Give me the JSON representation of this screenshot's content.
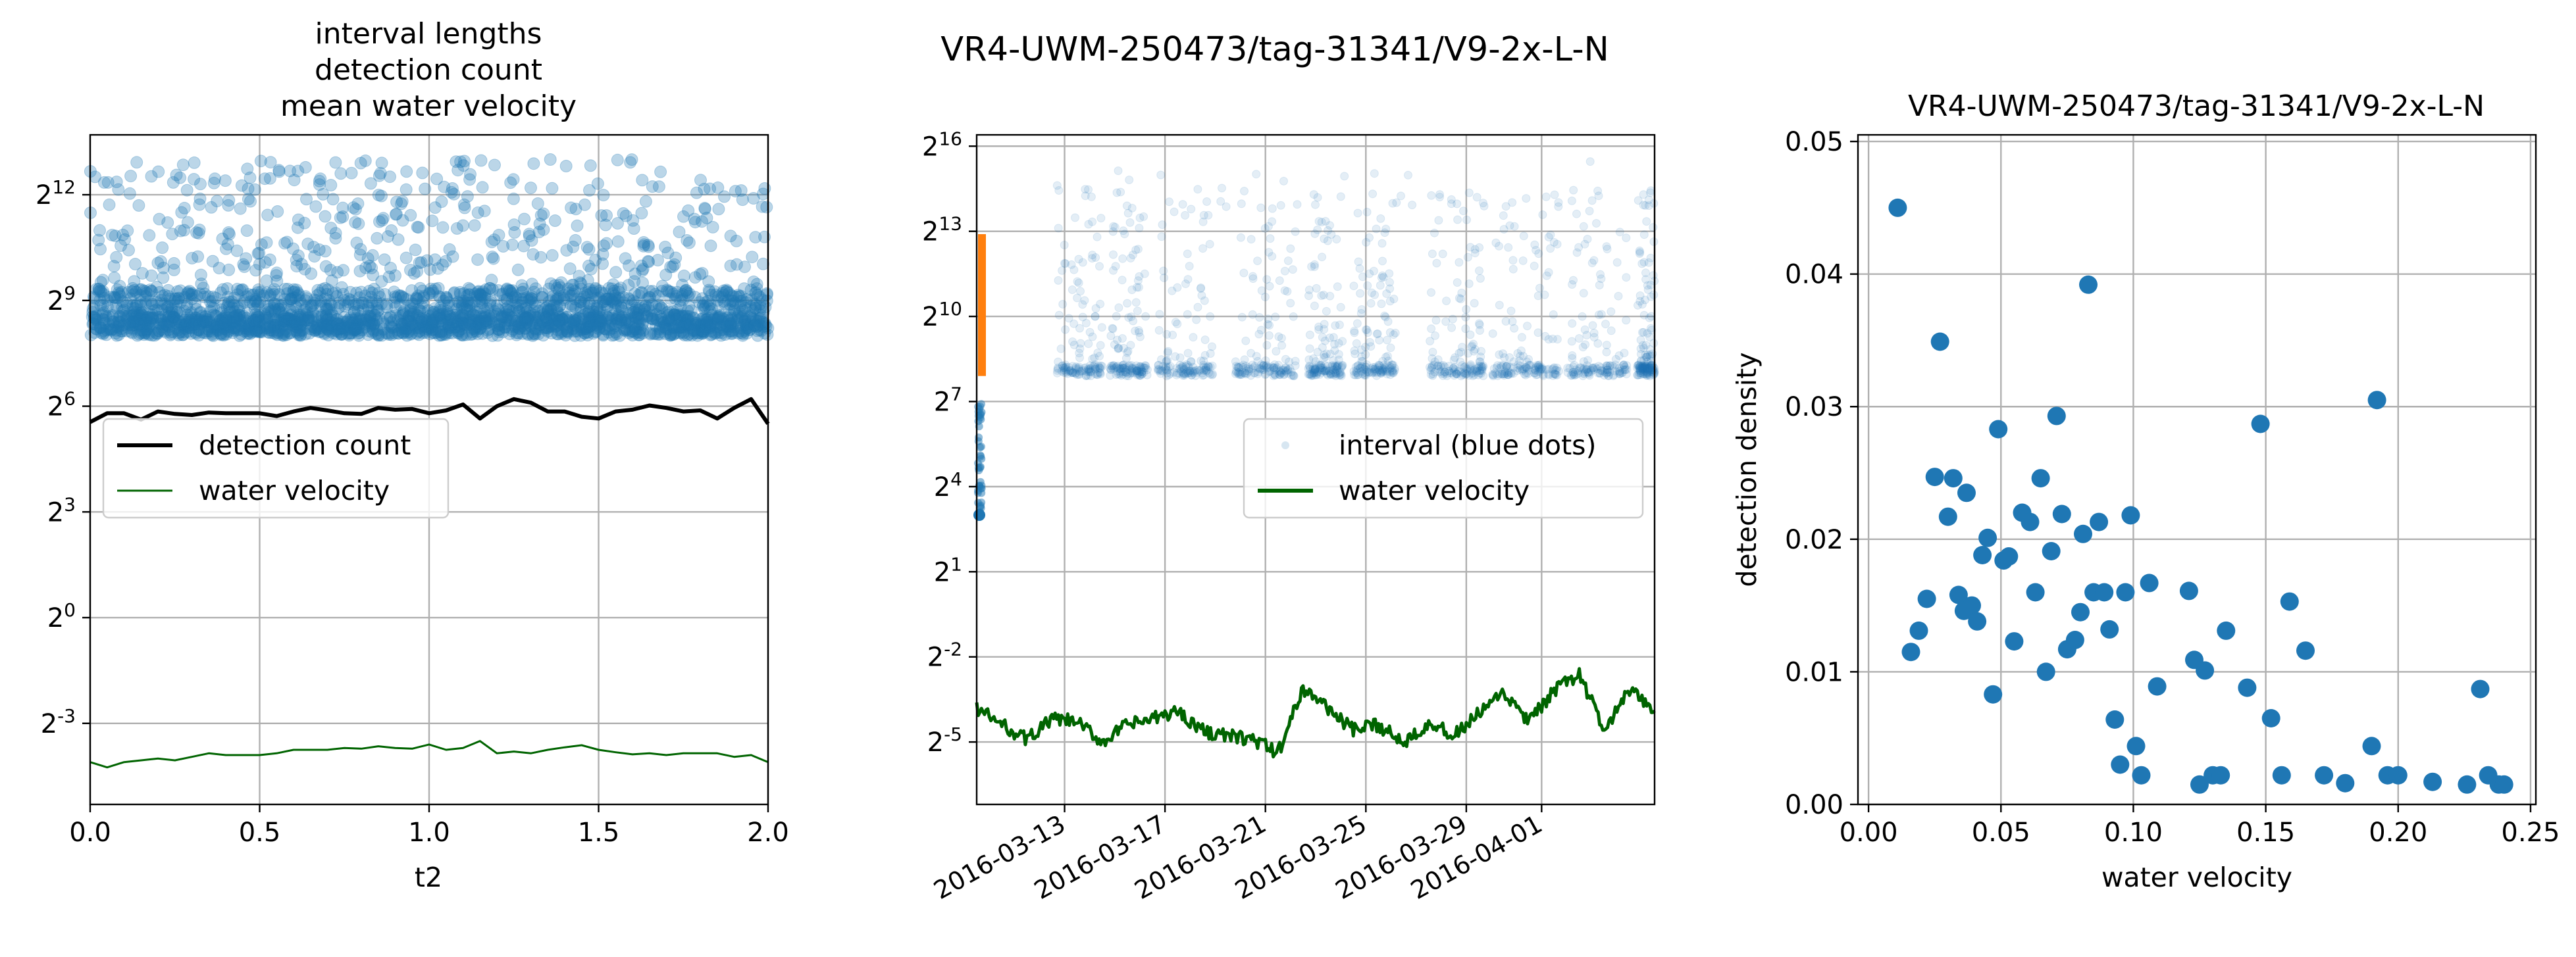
{
  "figure": {
    "suptitle": "VR4-UWM-250473/tag-31341/V9-2x-L-N"
  },
  "colors": {
    "blue": "#1f77b4",
    "orange": "#ff7f0e",
    "black": "#000000",
    "dark_green": "#006400",
    "grid": "#b0b0b0"
  },
  "chart_data": [
    {
      "type": "scatter",
      "title_lines": [
        "interval lengths",
        "detection count",
        "mean water velocity"
      ],
      "xlabel": "t2",
      "ylabel": "",
      "xlim": [
        0.0,
        2.0
      ],
      "y_scale": "log2",
      "ylim_log2": [
        -5.3,
        13.7
      ],
      "x_ticks": [
        "0.0",
        "0.5",
        "1.0",
        "1.5",
        "2.0"
      ],
      "y_tick_exponents": [
        -3,
        0,
        3,
        6,
        9,
        12
      ],
      "grid": true,
      "legend_position": "center-left",
      "legend": [
        "detection count",
        "water velocity"
      ],
      "scatter_summary": {
        "series": "interval lengths",
        "color": "#1f77b4",
        "alpha": 0.3,
        "dense_band_log2": [
          8.0,
          8.6
        ],
        "spread_log2": [
          8.6,
          13.0
        ]
      },
      "series": [
        {
          "name": "detection count",
          "color": "#000000",
          "x": [
            0.0,
            0.05,
            0.1,
            0.15,
            0.2,
            0.25,
            0.3,
            0.35,
            0.4,
            0.45,
            0.5,
            0.55,
            0.6,
            0.65,
            0.7,
            0.75,
            0.8,
            0.85,
            0.9,
            0.95,
            1.0,
            1.05,
            1.1,
            1.15,
            1.2,
            1.25,
            1.3,
            1.35,
            1.4,
            1.45,
            1.5,
            1.55,
            1.6,
            1.65,
            1.7,
            1.75,
            1.8,
            1.85,
            1.9,
            1.95,
            2.0
          ],
          "y_log2": [
            5.55,
            5.8,
            5.8,
            5.62,
            5.85,
            5.78,
            5.75,
            5.82,
            5.8,
            5.8,
            5.8,
            5.72,
            5.85,
            5.95,
            5.88,
            5.8,
            5.78,
            5.95,
            5.9,
            5.92,
            5.8,
            5.88,
            6.05,
            5.65,
            6.0,
            6.2,
            6.1,
            5.85,
            5.85,
            5.7,
            5.65,
            5.85,
            5.9,
            6.02,
            5.95,
            5.85,
            5.88,
            5.65,
            5.95,
            6.2,
            5.5
          ]
        },
        {
          "name": "water velocity",
          "color": "#006400",
          "x": [
            0.0,
            0.05,
            0.1,
            0.15,
            0.2,
            0.25,
            0.3,
            0.35,
            0.4,
            0.45,
            0.5,
            0.55,
            0.6,
            0.65,
            0.7,
            0.75,
            0.8,
            0.85,
            0.9,
            0.95,
            1.0,
            1.05,
            1.1,
            1.15,
            1.2,
            1.25,
            1.3,
            1.35,
            1.4,
            1.45,
            1.5,
            1.55,
            1.6,
            1.65,
            1.7,
            1.75,
            1.8,
            1.85,
            1.9,
            1.95,
            2.0
          ],
          "y_log2": [
            -4.1,
            -4.25,
            -4.1,
            -4.05,
            -4.0,
            -4.05,
            -3.95,
            -3.85,
            -3.9,
            -3.9,
            -3.9,
            -3.85,
            -3.75,
            -3.75,
            -3.75,
            -3.7,
            -3.72,
            -3.65,
            -3.7,
            -3.72,
            -3.6,
            -3.75,
            -3.7,
            -3.5,
            -3.85,
            -3.8,
            -3.85,
            -3.75,
            -3.68,
            -3.62,
            -3.75,
            -3.82,
            -3.88,
            -3.85,
            -3.9,
            -3.85,
            -3.85,
            -3.85,
            -3.95,
            -3.9,
            -4.1
          ]
        }
      ]
    },
    {
      "type": "scatter",
      "xlabel": "",
      "ylabel": "",
      "x_type": "date",
      "xlim": [
        "2016-03-09T12:00",
        "2016-04-05T12:00"
      ],
      "y_scale": "log2",
      "ylim_log2": [
        -7.2,
        16.4
      ],
      "x_ticks": [
        "2016-03-13",
        "2016-03-17",
        "2016-03-21",
        "2016-03-25",
        "2016-03-29",
        "2016-04-01"
      ],
      "y_tick_exponents": [
        -5,
        -2,
        1,
        4,
        7,
        10,
        13,
        16
      ],
      "grid": true,
      "legend_position": "center-right",
      "legend": [
        "interval (blue dots)",
        "water velocity"
      ],
      "scatter_summary": {
        "series": "interval (blue dots)",
        "color": "#1f77b4",
        "alpha": 0.12,
        "dense_band_log2": [
          7.9,
          8.3
        ],
        "spread_log2": [
          8.4,
          15.5
        ],
        "early_low_points_log2": [
          3.0,
          7.0
        ]
      },
      "highlight": {
        "color": "#ff7f0e",
        "date": "2016-03-09T12:00",
        "y_log2_range": [
          7.9,
          12.9
        ]
      },
      "series": [
        {
          "name": "water velocity",
          "color": "#006400",
          "x": [
            "2016-03-09T12:00",
            "2016-03-10T12:00",
            "2016-03-11T12:00",
            "2016-03-12T12:00",
            "2016-03-13T12:00",
            "2016-03-14T12:00",
            "2016-03-15T12:00",
            "2016-03-16T12:00",
            "2016-03-17T12:00",
            "2016-03-18T12:00",
            "2016-03-19T12:00",
            "2016-03-20T12:00",
            "2016-03-21T12:00",
            "2016-03-22T12:00",
            "2016-03-23T12:00",
            "2016-03-24T12:00",
            "2016-03-25T12:00",
            "2016-03-26T12:00",
            "2016-03-27T12:00",
            "2016-03-28T12:00",
            "2016-03-29T12:00",
            "2016-03-30T12:00",
            "2016-03-31T12:00",
            "2016-04-01T12:00",
            "2016-04-02T12:00",
            "2016-04-03T12:00",
            "2016-04-04T12:00",
            "2016-04-05T12:00"
          ],
          "y_log2": [
            -3.8,
            -4.4,
            -4.9,
            -4.2,
            -4.3,
            -5.0,
            -4.4,
            -4.2,
            -3.9,
            -4.6,
            -4.8,
            -4.9,
            -5.4,
            -3.1,
            -3.8,
            -4.6,
            -4.4,
            -5.0,
            -4.3,
            -4.8,
            -4.0,
            -3.3,
            -4.3,
            -3.2,
            -2.6,
            -4.6,
            -3.2,
            -3.9
          ]
        }
      ]
    },
    {
      "type": "scatter",
      "title": "VR4-UWM-250473/tag-31341/V9-2x-L-N",
      "xlabel": "water velocity",
      "ylabel": "detection density",
      "xlim": [
        -0.004,
        0.252
      ],
      "ylim": [
        0.0,
        0.0505
      ],
      "x_ticks": [
        "0.00",
        "0.05",
        "0.10",
        "0.15",
        "0.20",
        "0.25"
      ],
      "y_ticks": [
        "0.00",
        "0.01",
        "0.02",
        "0.03",
        "0.04",
        "0.05"
      ],
      "grid": true,
      "color": "#1f77b4",
      "x": [
        0.011,
        0.016,
        0.019,
        0.022,
        0.025,
        0.027,
        0.03,
        0.032,
        0.034,
        0.036,
        0.037,
        0.039,
        0.041,
        0.043,
        0.045,
        0.047,
        0.049,
        0.051,
        0.053,
        0.055,
        0.058,
        0.061,
        0.063,
        0.065,
        0.067,
        0.069,
        0.071,
        0.073,
        0.075,
        0.078,
        0.08,
        0.081,
        0.083,
        0.085,
        0.087,
        0.089,
        0.091,
        0.093,
        0.095,
        0.097,
        0.099,
        0.101,
        0.103,
        0.106,
        0.109,
        0.121,
        0.123,
        0.125,
        0.127,
        0.13,
        0.133,
        0.135,
        0.143,
        0.148,
        0.152,
        0.156,
        0.159,
        0.165,
        0.172,
        0.18,
        0.19,
        0.192,
        0.196,
        0.2,
        0.213,
        0.226,
        0.231,
        0.234,
        0.238,
        0.24
      ],
      "y": [
        0.045,
        0.0115,
        0.0131,
        0.0155,
        0.0247,
        0.0349,
        0.0217,
        0.0246,
        0.0158,
        0.0146,
        0.0235,
        0.015,
        0.0138,
        0.0188,
        0.0201,
        0.0083,
        0.0283,
        0.0184,
        0.0187,
        0.0123,
        0.022,
        0.0213,
        0.016,
        0.0246,
        0.01,
        0.0191,
        0.0293,
        0.0219,
        0.0117,
        0.0124,
        0.0145,
        0.0204,
        0.0392,
        0.016,
        0.0213,
        0.016,
        0.0132,
        0.0064,
        0.003,
        0.016,
        0.0218,
        0.0044,
        0.0022,
        0.0167,
        0.0089,
        0.0161,
        0.0109,
        0.0015,
        0.0101,
        0.0022,
        0.0022,
        0.0131,
        0.0088,
        0.0287,
        0.0065,
        0.0022,
        0.0153,
        0.0116,
        0.0022,
        0.0016,
        0.0044,
        0.0305,
        0.0022,
        0.0022,
        0.0017,
        0.0015,
        0.0087,
        0.0022,
        0.0015,
        0.0015
      ]
    }
  ]
}
